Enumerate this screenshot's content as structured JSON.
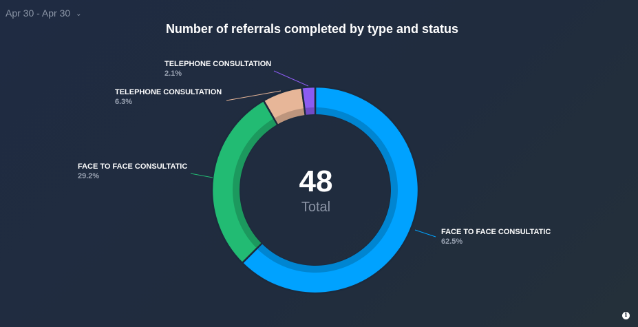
{
  "date_range": {
    "label": "Apr 30 - Apr 30"
  },
  "chart_data": {
    "type": "pie",
    "title": "Number of referrals completed by type and status",
    "total": {
      "value": "48",
      "label": "Total"
    },
    "slices": [
      {
        "name": "FACE TO FACE CONSULTATIC",
        "percent": 62.5,
        "percent_label": "62.5%",
        "value": 30,
        "color": "#00a2ff"
      },
      {
        "name": "FACE TO FACE CONSULTATIC",
        "percent": 29.2,
        "percent_label": "29.2%",
        "value": 14,
        "color": "#22bb73"
      },
      {
        "name": "TELEPHONE CONSULTATION",
        "percent": 6.3,
        "percent_label": "6.3%",
        "value": 3,
        "color": "#e7b698"
      },
      {
        "name": "TELEPHONE CONSULTATION",
        "percent": 2.1,
        "percent_label": "2.1%",
        "value": 1,
        "color": "#8c5cf2"
      }
    ]
  }
}
